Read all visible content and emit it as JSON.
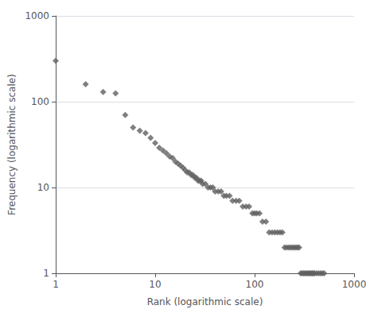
{
  "chart_data": {
    "type": "scatter",
    "x": [
      1,
      2,
      3,
      4,
      5,
      6,
      7,
      8,
      9,
      10,
      11,
      12,
      13,
      14,
      15,
      16,
      17,
      18,
      19,
      20,
      21,
      22,
      23,
      24,
      25,
      26,
      27,
      28,
      29,
      30,
      32,
      34,
      36,
      38,
      40,
      43,
      46,
      49,
      52,
      56,
      60,
      65,
      70,
      76,
      82,
      88,
      95,
      100,
      105,
      112,
      120,
      130,
      140,
      150,
      160,
      170,
      180,
      190,
      200,
      210,
      220,
      230,
      240,
      250,
      260,
      270,
      280,
      290,
      300,
      310,
      320,
      330,
      340,
      350,
      360,
      370,
      380,
      390,
      400,
      420,
      440,
      460,
      480,
      500
    ],
    "values": [
      300,
      160,
      130,
      125,
      70,
      50,
      46,
      43,
      38,
      33,
      29,
      27,
      25,
      23,
      22,
      20,
      19,
      18,
      17,
      16,
      15,
      15,
      14,
      14,
      13,
      13,
      12,
      12,
      12,
      11,
      11,
      10,
      10,
      10,
      9,
      9,
      9,
      8,
      8,
      8,
      7,
      7,
      7,
      6,
      6,
      6,
      5,
      5,
      5,
      5,
      4,
      4,
      3,
      3,
      3,
      3,
      3,
      3,
      2,
      2,
      2,
      2,
      2,
      2,
      2,
      2,
      2,
      1,
      1,
      1,
      1,
      1,
      1,
      1,
      1,
      1,
      1,
      1,
      1,
      1,
      1,
      1,
      1,
      1
    ],
    "color": "#606060",
    "marker": "diamond",
    "xlabel": "Rank (logarithmic scale)",
    "ylabel": "Frequency (logarithmic scale)",
    "xlim": [
      1,
      1000
    ],
    "ylim": [
      1,
      1000
    ],
    "xticks": [
      1,
      10,
      100,
      1000
    ],
    "yticks": [
      1,
      10,
      100,
      1000
    ],
    "log": true,
    "grid": "y"
  }
}
